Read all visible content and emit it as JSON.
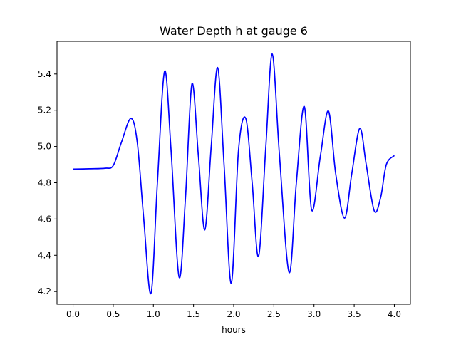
{
  "chart_data": {
    "type": "line",
    "title": "Water Depth h at gauge 6",
    "xlabel": "hours",
    "ylabel": "",
    "xlim": [
      -0.2,
      4.2
    ],
    "ylim": [
      4.13,
      5.58
    ],
    "xticks": [
      0.0,
      0.5,
      1.0,
      1.5,
      2.0,
      2.5,
      3.0,
      3.5,
      4.0
    ],
    "xtick_labels": [
      "0.0",
      "0.5",
      "1.0",
      "1.5",
      "2.0",
      "2.5",
      "3.0",
      "3.5",
      "4.0"
    ],
    "yticks": [
      4.2,
      4.4,
      4.6,
      4.8,
      5.0,
      5.2,
      5.4
    ],
    "ytick_labels": [
      "4.2",
      "4.4",
      "4.6",
      "4.8",
      "5.0",
      "5.2",
      "5.4"
    ],
    "grid": false,
    "series": [
      {
        "color": "#0000ff",
        "x": [
          0.0,
          0.2,
          0.4,
          0.5,
          0.6,
          0.72,
          0.8,
          0.88,
          0.97,
          1.05,
          1.14,
          1.22,
          1.32,
          1.4,
          1.48,
          1.56,
          1.64,
          1.72,
          1.8,
          1.88,
          1.97,
          2.06,
          2.15,
          2.23,
          2.31,
          2.4,
          2.48,
          2.57,
          2.69,
          2.78,
          2.88,
          2.97,
          3.08,
          3.18,
          3.27,
          3.38,
          3.47,
          3.57,
          3.65,
          3.75,
          3.83,
          3.9,
          4.0
        ],
        "y": [
          4.875,
          4.877,
          4.88,
          4.895,
          5.02,
          5.155,
          5.02,
          4.6,
          4.19,
          4.8,
          5.415,
          4.98,
          4.28,
          4.72,
          5.345,
          4.95,
          4.54,
          5.0,
          5.435,
          4.9,
          4.245,
          4.98,
          5.155,
          4.8,
          4.395,
          5.0,
          5.51,
          4.95,
          4.305,
          4.8,
          5.22,
          4.65,
          4.95,
          5.195,
          4.85,
          4.605,
          4.85,
          5.1,
          4.9,
          4.645,
          4.72,
          4.9,
          4.95
        ]
      }
    ]
  }
}
